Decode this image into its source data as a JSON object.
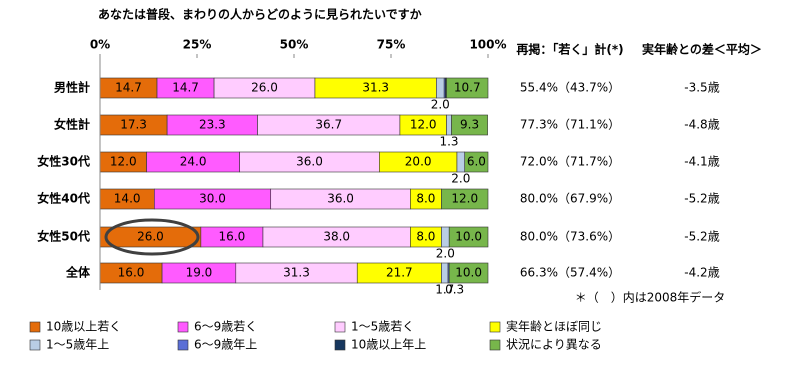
{
  "chart_data": {
    "type": "stacked_barh",
    "title": "あなたは普段、まわりの人からどのように見られたいですか",
    "categories": [
      "男性計",
      "女性計",
      "女性30代",
      "女性40代",
      "女性50代",
      "全体"
    ],
    "xlim": [
      0,
      100
    ],
    "xticks": [
      {
        "value": 0,
        "label": "0%"
      },
      {
        "value": 25,
        "label": "25%"
      },
      {
        "value": 50,
        "label": "50%"
      },
      {
        "value": 75,
        "label": "75%"
      },
      {
        "value": 100,
        "label": "100%"
      }
    ],
    "legend": "bottom",
    "series": [
      {
        "name": "10歳以上若く",
        "color": "#e46c0a",
        "values": [
          14.7,
          17.3,
          12.0,
          14.0,
          26.0,
          16.0
        ],
        "value_labels": [
          "14.7",
          "17.3",
          "12.0",
          "14.0",
          "26.0",
          "16.0"
        ]
      },
      {
        "name": "6～9歳若く",
        "color": "#ff5bff",
        "values": [
          14.7,
          23.3,
          24.0,
          30.0,
          16.0,
          19.0
        ],
        "value_labels": [
          "14.7",
          "23.3",
          "24.0",
          "30.0",
          "16.0",
          "19.0"
        ]
      },
      {
        "name": "1～5歳若く",
        "color": "#ffccff",
        "values": [
          26.0,
          36.7,
          36.0,
          36.0,
          38.0,
          31.3
        ],
        "value_labels": [
          "26.0",
          "36.7",
          "36.0",
          "36.0",
          "38.0",
          "31.3"
        ]
      },
      {
        "name": "実年齢とほぼ同じ",
        "color": "#ffff00",
        "values": [
          31.3,
          12.0,
          20.0,
          8.0,
          8.0,
          21.7
        ],
        "value_labels": [
          "31.3",
          "12.0",
          "20.0",
          "8.0",
          "8.0",
          "21.7"
        ]
      },
      {
        "name": "1～5歳年上",
        "color": "#b9cde5",
        "values": [
          2.0,
          1.3,
          2.0,
          0,
          2.0,
          1.7
        ],
        "value_labels": [
          "2.0",
          "1.3",
          "2.0",
          null,
          "2.0",
          "1.7"
        ]
      },
      {
        "name": "6～9歳年上",
        "color": "#5b6fd6",
        "values": [
          0.3,
          0,
          0,
          0,
          0,
          0.3
        ],
        "value_labels": [
          null,
          null,
          null,
          null,
          null,
          "0.3"
        ]
      },
      {
        "name": "10歳以上年上",
        "color": "#17375e",
        "values": [
          0.3,
          0,
          0,
          0,
          0,
          0
        ],
        "value_labels": [
          null,
          null,
          null,
          null,
          null,
          null
        ]
      },
      {
        "name": "状況により異なる",
        "color": "#77b64b",
        "values": [
          10.7,
          9.3,
          6.0,
          12.0,
          10.0,
          10.0
        ],
        "value_labels": [
          "10.7",
          "9.3",
          "6.0",
          "12.0",
          "10.0",
          "10.0"
        ]
      }
    ]
  },
  "side_table": {
    "headers": [
      "再掲：「若く」計(*)",
      "実年齢との差＜平均＞"
    ],
    "rows": [
      [
        "55.4%（43.7%）",
        "-3.5歳"
      ],
      [
        "77.3%（71.1%）",
        "-4.8歳"
      ],
      [
        "72.0%（71.7%）",
        "-4.1歳"
      ],
      [
        "80.0%（67.9%）",
        "-5.2歳"
      ],
      [
        "80.0%（73.6%）",
        "-5.2歳"
      ],
      [
        "66.3%（57.4%）",
        "-4.2歳"
      ]
    ],
    "footnote": "＊（　）内は2008年データ"
  }
}
